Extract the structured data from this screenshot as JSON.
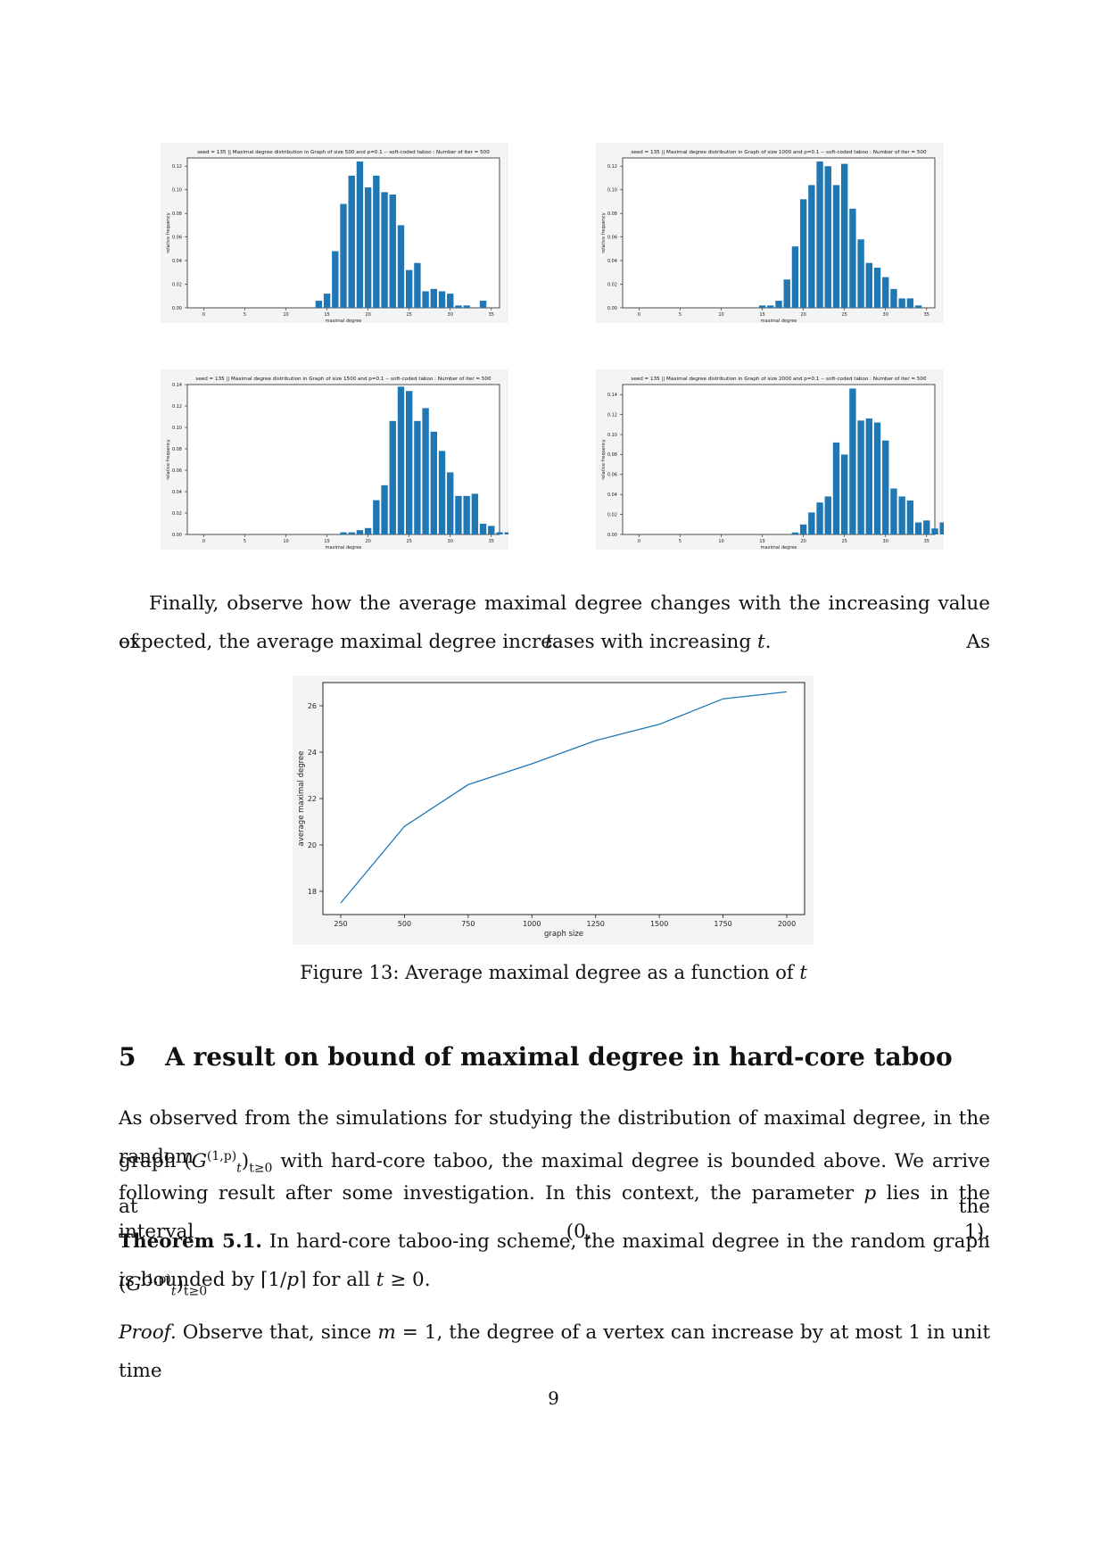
{
  "histograms": [
    {
      "title": "seed = 135 || Maximal degree distribution in Graph of size 500 and p=0.1 -- soft-coded taboo : Number of iter = 500",
      "xlabel": "maximal degree",
      "ylabel": "relative frequency",
      "xticks": [
        "0",
        "5",
        "10",
        "15",
        "20",
        "25",
        "30",
        "35"
      ],
      "yticks": [
        "0.00",
        "0.02",
        "0.04",
        "0.06",
        "0.08",
        "0.10",
        "0.12"
      ],
      "ymax": 0.127,
      "x_start": 14,
      "values": [
        0.006,
        0.012,
        0.048,
        0.088,
        0.112,
        0.124,
        0.102,
        0.112,
        0.098,
        0.096,
        0.07,
        0.032,
        0.038,
        0.014,
        0.016,
        0.014,
        0.012,
        0.002,
        0.002,
        0,
        0.006
      ]
    },
    {
      "title": "seed = 135 || Maximal degree distribution in Graph of size 1000 and p=0.1 -- soft-coded taboo : Number of iter = 500",
      "xlabel": "maximal degree",
      "ylabel": "relative frequency",
      "xticks": [
        "0",
        "5",
        "10",
        "15",
        "20",
        "25",
        "30",
        "35"
      ],
      "yticks": [
        "0.00",
        "0.02",
        "0.04",
        "0.06",
        "0.08",
        "0.10",
        "0.12"
      ],
      "ymax": 0.127,
      "x_start": 15,
      "values": [
        0.002,
        0.002,
        0.006,
        0.024,
        0.052,
        0.092,
        0.104,
        0.124,
        0.12,
        0.104,
        0.122,
        0.084,
        0.058,
        0.038,
        0.034,
        0.026,
        0.016,
        0.008,
        0.008,
        0.002
      ]
    },
    {
      "title": "seed = 135 || Maximal degree distribution in Graph of size 1500 and p=0.1 -- soft-coded taboo : Number of iter = 500",
      "xlabel": "maximal degree",
      "ylabel": "relative frequency",
      "xticks": [
        "0",
        "5",
        "10",
        "15",
        "20",
        "25",
        "30",
        "35"
      ],
      "yticks": [
        "0.00",
        "0.02",
        "0.04",
        "0.06",
        "0.08",
        "0.10",
        "0.12",
        "0.14"
      ],
      "ymax": 0.14,
      "x_start": 17,
      "values": [
        0.002,
        0.002,
        0.004,
        0.006,
        0.032,
        0.046,
        0.106,
        0.138,
        0.134,
        0.106,
        0.118,
        0.096,
        0.078,
        0.058,
        0.036,
        0.036,
        0.038,
        0.01,
        0.008,
        0.002,
        0.002,
        0.002
      ]
    },
    {
      "title": "seed = 135 || Maximal degree distribution in Graph of size 2000 and p=0.1 -- soft-coded taboo : Number of iter = 500",
      "xlabel": "maximal degree",
      "ylabel": "relative frequency",
      "xticks": [
        "0",
        "5",
        "10",
        "15",
        "20",
        "25",
        "30",
        "35"
      ],
      "yticks": [
        "0.00",
        "0.02",
        "0.04",
        "0.06",
        "0.08",
        "0.10",
        "0.12",
        "0.14"
      ],
      "ymax": 0.15,
      "x_start": 19,
      "values": [
        0.002,
        0.01,
        0.022,
        0.032,
        0.038,
        0.092,
        0.08,
        0.146,
        0.114,
        0.116,
        0.112,
        0.094,
        0.046,
        0.038,
        0.034,
        0.012,
        0.014,
        0.006,
        0.012,
        0.004
      ]
    }
  ],
  "chart_data": {
    "type": "line",
    "x": [
      250,
      500,
      750,
      1000,
      1250,
      1500,
      1750,
      2000
    ],
    "y": [
      17.5,
      20.8,
      22.6,
      23.5,
      24.5,
      25.2,
      26.3,
      26.6
    ],
    "xticks": [
      "250",
      "500",
      "750",
      "1000",
      "1250",
      "1500",
      "1750",
      "2000"
    ],
    "yticks": [
      "18",
      "20",
      "22",
      "24",
      "26"
    ],
    "xlabel": "graph size",
    "ylabel": "average maximal degree",
    "xlim": [
      180,
      2070
    ],
    "ylim": [
      17,
      27.0
    ],
    "color": "#1f77b4"
  },
  "bar_color": "#1f77b4",
  "text": {
    "para1_line1": "Finally, observe how the average maximal degree changes with the increasing value of",
    "para1_var_t": "t",
    "para1_line1_end": ". As",
    "para1_line2": "expected, the average maximal degree increases with increasing",
    "para1_line2_end": ".",
    "caption": "Figure 13: Average maximal degree as a function of",
    "caption_var": "t",
    "section_number": "5",
    "section_title": "A result on bound of maximal degree in hard-core taboo",
    "para2_line1": "As observed from the simulations for studying the distribution of maximal degree, in the random",
    "para2_line2_a": "graph",
    "para2_line2_b": "with hard-core taboo, the maximal degree is bounded above. We arrive at the",
    "para2_line3": "following result after some investigation. In this context, the parameter",
    "para2_line3_p": "p",
    "para2_line3_end": "lies in the interval (0, 1).",
    "theorem_label": "Theorem 5.1.",
    "theorem_line1": "In hard-core taboo-ing scheme, the maximal degree in the random graph",
    "theorem_line2_a": "is bounded by ⌈1/",
    "theorem_line2_b": "⌉ for all",
    "theorem_line2_c": "≥ 0.",
    "proof_label": "Proof.",
    "proof_line1": "Observe that, since",
    "proof_m": "m",
    "proof_line1_end": "= 1, the degree of a vertex can increase by at most 1 in unit time",
    "page_number": "9",
    "math_G": "G",
    "math_sup": "(1,p)",
    "math_sub_t": "t",
    "math_sub_range": "t≥0",
    "math_t": "t",
    "math_p": "p"
  }
}
